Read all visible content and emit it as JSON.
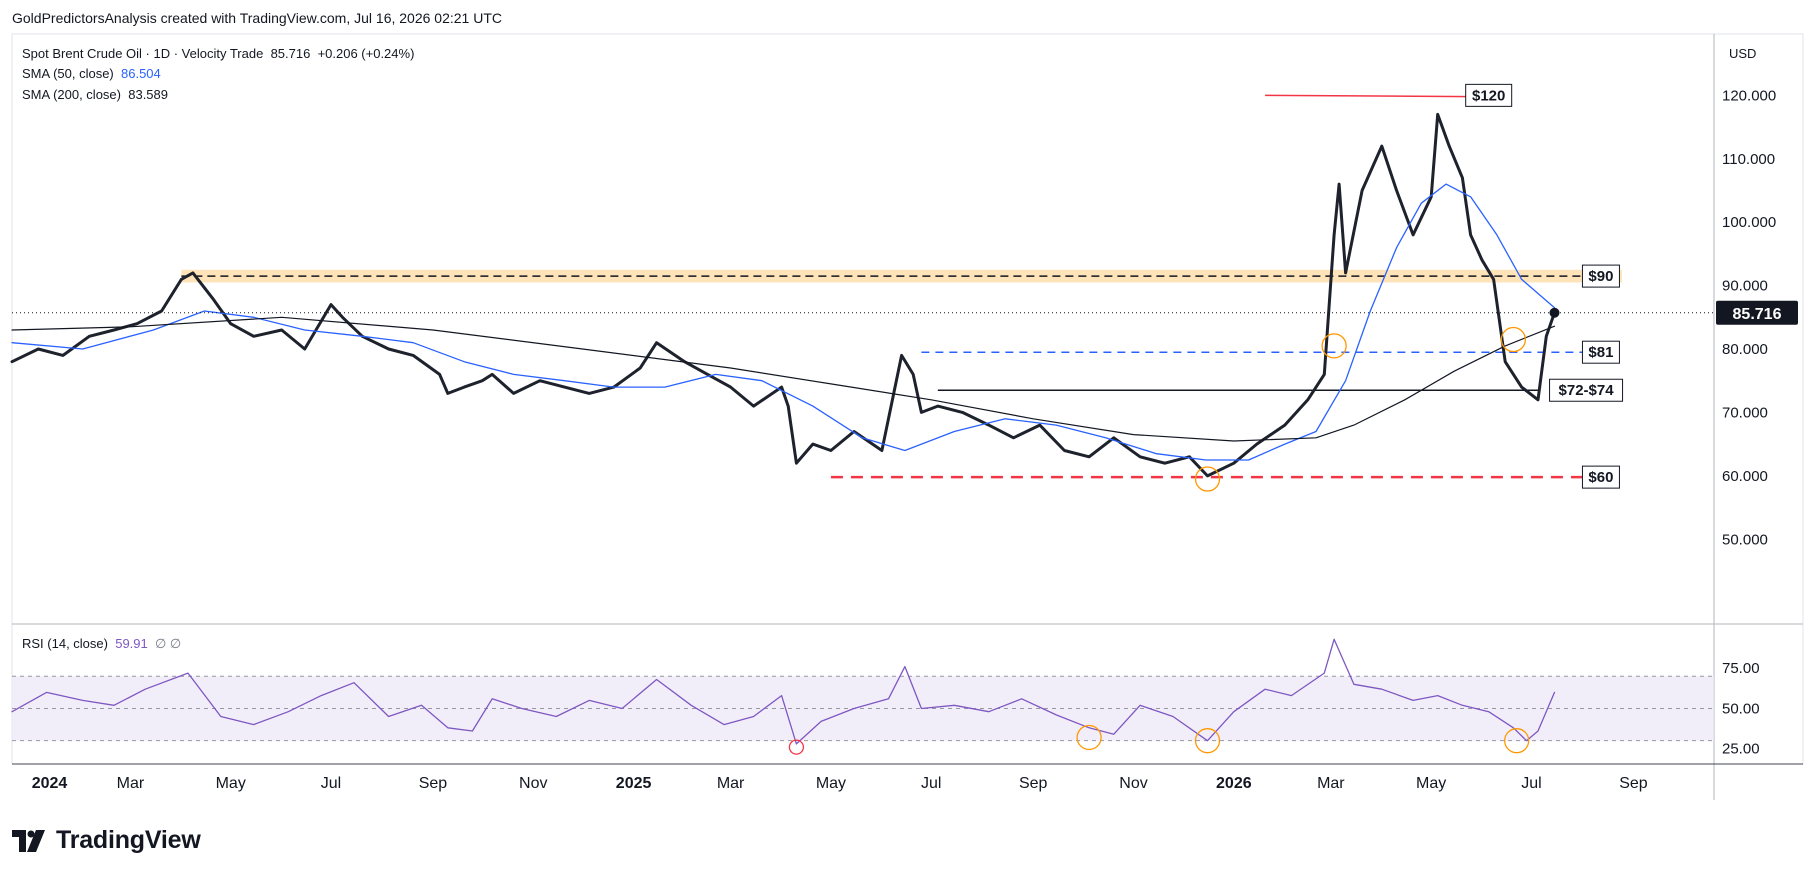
{
  "header": {
    "text": "GoldPredictorsAnalysis created with TradingView.com, Jul 16, 2026 02:21 UTC"
  },
  "legend": {
    "symbol": "Spot Brent Crude Oil · 1D · Velocity Trade",
    "last": "85.716",
    "change": "+0.206 (+0.24%)",
    "sma50_label": "SMA (50, close)",
    "sma50_value": "86.504",
    "sma200_label": "SMA (200, close)",
    "sma200_value": "83.589",
    "rsi_label": "RSI (14, close)",
    "rsi_value": "59.91",
    "rsi_extra": "∅  ∅"
  },
  "currency": "USD",
  "footer": {
    "brand": "TradingView"
  },
  "colors": {
    "price": "#1e222d",
    "sma50": "#2962ff",
    "sma200": "#131722",
    "rsi": "#7e57c2",
    "rsi_band": "#ede7f6",
    "resistance_band": "#ffcc80",
    "red": "#f23645",
    "blue_dash": "#2962ff",
    "circle": "#ff9800"
  },
  "chart_data": {
    "type": "line",
    "x_axis": {
      "ticks": [
        {
          "date": "2024-01-01",
          "label": "2024",
          "bold": true
        },
        {
          "date": "2024-03-01",
          "label": "Mar"
        },
        {
          "date": "2024-05-01",
          "label": "May"
        },
        {
          "date": "2024-07-01",
          "label": "Jul"
        },
        {
          "date": "2024-09-01",
          "label": "Sep"
        },
        {
          "date": "2024-11-01",
          "label": "Nov"
        },
        {
          "date": "2025-01-01",
          "label": "2025",
          "bold": true
        },
        {
          "date": "2025-03-01",
          "label": "Mar"
        },
        {
          "date": "2025-05-01",
          "label": "May"
        },
        {
          "date": "2025-07-01",
          "label": "Jul"
        },
        {
          "date": "2025-09-01",
          "label": "Sep"
        },
        {
          "date": "2025-11-01",
          "label": "Nov"
        },
        {
          "date": "2026-01-01",
          "label": "2026",
          "bold": true
        },
        {
          "date": "2026-03-01",
          "label": "Mar"
        },
        {
          "date": "2026-05-01",
          "label": "May"
        },
        {
          "date": "2026-07-01",
          "label": "Jul"
        },
        {
          "date": "2026-09-01",
          "label": "Sep"
        }
      ],
      "range": [
        "2023-12-20",
        "2026-10-20"
      ]
    },
    "price_axis": {
      "ticks": [
        "50.000",
        "60.000",
        "70.000",
        "80.000",
        "90.000",
        "100.000",
        "110.000",
        "120.000"
      ],
      "range": [
        42,
        124
      ],
      "last_price": "85.716"
    },
    "series": [
      {
        "key": "price",
        "x": [
          "2023-12-20",
          "2024-01-05",
          "2024-01-20",
          "2024-02-05",
          "2024-02-20",
          "2024-03-05",
          "2024-03-20",
          "2024-04-01",
          "2024-04-08",
          "2024-04-20",
          "2024-05-01",
          "2024-05-15",
          "2024-06-01",
          "2024-06-15",
          "2024-07-01",
          "2024-07-08",
          "2024-07-20",
          "2024-08-05",
          "2024-08-20",
          "2024-09-05",
          "2024-09-10",
          "2024-09-20",
          "2024-10-01",
          "2024-10-07",
          "2024-10-20",
          "2024-11-05",
          "2024-11-20",
          "2024-12-05",
          "2024-12-20",
          "2025-01-05",
          "2025-01-15",
          "2025-02-01",
          "2025-02-15",
          "2025-03-01",
          "2025-03-15",
          "2025-04-01",
          "2025-04-05",
          "2025-04-10",
          "2025-04-20",
          "2025-05-01",
          "2025-05-15",
          "2025-06-01",
          "2025-06-13",
          "2025-06-20",
          "2025-06-25",
          "2025-07-05",
          "2025-07-20",
          "2025-08-05",
          "2025-08-20",
          "2025-09-05",
          "2025-09-20",
          "2025-10-05",
          "2025-10-20",
          "2025-11-05",
          "2025-11-20",
          "2025-12-05",
          "2025-12-16",
          "2026-01-01",
          "2026-01-15",
          "2026-02-01",
          "2026-02-15",
          "2026-02-25",
          "2026-03-03",
          "2026-03-06",
          "2026-03-10",
          "2026-03-20",
          "2026-04-01",
          "2026-04-10",
          "2026-04-20",
          "2026-05-01",
          "2026-05-05",
          "2026-05-12",
          "2026-05-20",
          "2026-05-25",
          "2026-06-01",
          "2026-06-08",
          "2026-06-15",
          "2026-06-25",
          "2026-07-05",
          "2026-07-10",
          "2026-07-15"
        ],
        "y": [
          78,
          80,
          79,
          82,
          83,
          84,
          86,
          91,
          92,
          88,
          84,
          82,
          83,
          80,
          87,
          85,
          82,
          80,
          79,
          76,
          73,
          74,
          75,
          76,
          73,
          75,
          74,
          73,
          74,
          77,
          81,
          78,
          76,
          74,
          71,
          74,
          71,
          62,
          65,
          64,
          67,
          64,
          79,
          76,
          70,
          71,
          70,
          68,
          66,
          68,
          64,
          63,
          66,
          63,
          62,
          63,
          60,
          62,
          65,
          68,
          72,
          76,
          98,
          106,
          92,
          105,
          112,
          105,
          98,
          104,
          117,
          112,
          107,
          98,
          94,
          91,
          78,
          74,
          72,
          82,
          85.716
        ]
      },
      {
        "key": "sma50",
        "x": [
          "2023-12-20",
          "2024-02-01",
          "2024-03-15",
          "2024-04-15",
          "2024-05-15",
          "2024-06-15",
          "2024-07-20",
          "2024-08-20",
          "2024-09-20",
          "2024-10-20",
          "2024-11-20",
          "2024-12-20",
          "2025-01-20",
          "2025-02-20",
          "2025-03-20",
          "2025-04-20",
          "2025-05-20",
          "2025-06-15",
          "2025-07-15",
          "2025-08-15",
          "2025-09-15",
          "2025-10-15",
          "2025-11-15",
          "2025-12-15",
          "2026-01-10",
          "2026-02-01",
          "2026-02-20",
          "2026-03-10",
          "2026-03-25",
          "2026-04-10",
          "2026-04-25",
          "2026-05-10",
          "2026-05-25",
          "2026-06-10",
          "2026-06-25",
          "2026-07-15"
        ],
        "y": [
          81,
          80,
          83,
          86,
          85,
          83,
          82,
          81,
          78,
          76,
          75,
          74,
          74,
          76,
          75,
          71,
          66,
          64,
          67,
          69,
          68,
          66,
          63.5,
          62.5,
          62.5,
          65,
          67,
          75,
          86,
          96,
          103,
          106,
          104,
          98,
          91,
          86.5
        ]
      },
      {
        "key": "sma200",
        "x": [
          "2023-12-20",
          "2024-03-01",
          "2024-06-01",
          "2024-09-01",
          "2024-12-01",
          "2025-03-01",
          "2025-05-01",
          "2025-07-01",
          "2025-09-01",
          "2025-11-01",
          "2026-01-01",
          "2026-02-20",
          "2026-03-15",
          "2026-04-15",
          "2026-05-15",
          "2026-06-15",
          "2026-07-15"
        ],
        "y": [
          83,
          83.5,
          85,
          83,
          80,
          77,
          74.5,
          72,
          69,
          66.5,
          65.5,
          66,
          68,
          72,
          76.5,
          80.5,
          83.6
        ]
      }
    ],
    "rsi": {
      "axis_ticks": [
        "25.00",
        "50.00",
        "75.00"
      ],
      "range": [
        18,
        100
      ],
      "overbought": 70,
      "oversold": 30,
      "x": [
        "2023-12-20",
        "2024-01-10",
        "2024-02-01",
        "2024-02-20",
        "2024-03-10",
        "2024-04-05",
        "2024-04-25",
        "2024-05-15",
        "2024-06-05",
        "2024-06-25",
        "2024-07-15",
        "2024-08-05",
        "2024-08-25",
        "2024-09-10",
        "2024-09-25",
        "2024-10-07",
        "2024-10-25",
        "2024-11-15",
        "2024-12-05",
        "2024-12-25",
        "2025-01-15",
        "2025-02-05",
        "2025-02-25",
        "2025-03-15",
        "2025-04-01",
        "2025-04-10",
        "2025-04-25",
        "2025-05-15",
        "2025-06-05",
        "2025-06-15",
        "2025-06-25",
        "2025-07-15",
        "2025-08-05",
        "2025-08-25",
        "2025-09-15",
        "2025-10-05",
        "2025-10-20",
        "2025-11-05",
        "2025-11-25",
        "2025-12-16",
        "2026-01-01",
        "2026-01-20",
        "2026-02-05",
        "2026-02-25",
        "2026-03-03",
        "2026-03-15",
        "2026-04-01",
        "2026-04-20",
        "2026-05-05",
        "2026-05-20",
        "2026-06-05",
        "2026-06-20",
        "2026-06-28",
        "2026-07-05",
        "2026-07-15"
      ],
      "y": [
        48,
        60,
        55,
        52,
        62,
        72,
        45,
        40,
        48,
        58,
        66,
        45,
        52,
        38,
        36,
        56,
        50,
        45,
        55,
        50,
        68,
        52,
        40,
        45,
        58,
        28,
        42,
        50,
        56,
        76,
        50,
        52,
        48,
        56,
        46,
        38,
        34,
        52,
        45,
        30,
        48,
        62,
        58,
        72,
        93,
        65,
        62,
        55,
        58,
        52,
        48,
        38,
        30,
        36,
        60
      ]
    }
  },
  "annotations": {
    "level_120": "$120",
    "level_90": "$90",
    "level_81": "$81",
    "level_72_74": "$72-$74",
    "level_60": "$60"
  }
}
